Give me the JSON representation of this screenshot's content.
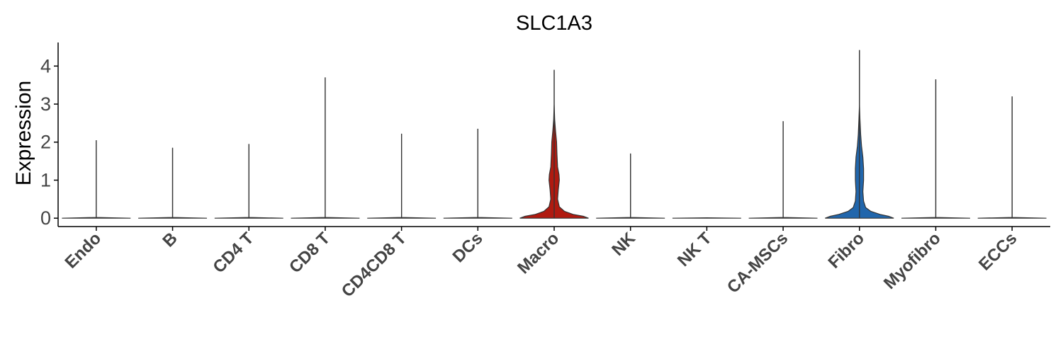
{
  "chart_data": {
    "type": "violin",
    "title": "SLC1A3",
    "xlabel": "",
    "ylabel": "Expression",
    "ylim": [
      -0.22,
      4.62
    ],
    "yticks": [
      0,
      1,
      2,
      3,
      4
    ],
    "grid": false,
    "categories": [
      "Endo",
      "B",
      "CD4 T",
      "CD8 T",
      "CD4CD8 T",
      "DCs",
      "Macro",
      "NK",
      "NK T",
      "CA-MSCs",
      "Fibro",
      "Myofibro",
      "ECCs"
    ],
    "max_values": [
      2.05,
      1.85,
      1.95,
      3.7,
      2.22,
      2.35,
      3.9,
      1.7,
      0,
      2.55,
      4.42,
      3.65,
      3.2
    ],
    "violins": [
      {
        "category": "Endo",
        "color": "#ffffff",
        "profile": [
          [
            0,
            1.0
          ],
          [
            0.02,
            0.0
          ],
          [
            2.05,
            0.0
          ]
        ]
      },
      {
        "category": "B",
        "color": "#ffffff",
        "profile": [
          [
            0,
            1.0
          ],
          [
            0.02,
            0.0
          ],
          [
            1.85,
            0.0
          ]
        ]
      },
      {
        "category": "CD4 T",
        "color": "#ffffff",
        "profile": [
          [
            0,
            1.0
          ],
          [
            0.02,
            0.0
          ],
          [
            1.95,
            0.0
          ]
        ]
      },
      {
        "category": "CD8 T",
        "color": "#ffffff",
        "profile": [
          [
            0,
            1.0
          ],
          [
            0.02,
            0.0
          ],
          [
            3.7,
            0.0
          ]
        ]
      },
      {
        "category": "CD4CD8 T",
        "color": "#ffffff",
        "profile": [
          [
            0,
            1.0
          ],
          [
            0.02,
            0.0
          ],
          [
            2.22,
            0.0
          ]
        ]
      },
      {
        "category": "DCs",
        "color": "#ffffff",
        "profile": [
          [
            0,
            1.0
          ],
          [
            0.02,
            0.0
          ],
          [
            2.35,
            0.0
          ]
        ]
      },
      {
        "category": "Macro",
        "color": "#b01a10",
        "profile": [
          [
            0,
            1.0
          ],
          [
            0.05,
            0.85
          ],
          [
            0.1,
            0.55
          ],
          [
            0.18,
            0.3
          ],
          [
            0.3,
            0.15
          ],
          [
            0.5,
            0.1
          ],
          [
            0.75,
            0.12
          ],
          [
            1.0,
            0.15
          ],
          [
            1.15,
            0.14
          ],
          [
            1.35,
            0.1
          ],
          [
            1.7,
            0.08
          ],
          [
            2.0,
            0.07
          ],
          [
            2.3,
            0.04
          ],
          [
            2.6,
            0.015
          ],
          [
            3.0,
            0.0
          ],
          [
            3.9,
            0.0
          ]
        ]
      },
      {
        "category": "NK",
        "color": "#ffffff",
        "profile": [
          [
            0,
            1.0
          ],
          [
            0.02,
            0.0
          ],
          [
            1.7,
            0.0
          ]
        ]
      },
      {
        "category": "NK T",
        "color": "#ffffff",
        "profile": [
          [
            0,
            1.0
          ],
          [
            0.01,
            0.0
          ]
        ]
      },
      {
        "category": "CA-MSCs",
        "color": "#ffffff",
        "profile": [
          [
            0,
            1.0
          ],
          [
            0.02,
            0.0
          ],
          [
            2.55,
            0.0
          ]
        ]
      },
      {
        "category": "Fibro",
        "color": "#2166ac",
        "profile": [
          [
            0,
            1.0
          ],
          [
            0.05,
            0.85
          ],
          [
            0.1,
            0.6
          ],
          [
            0.18,
            0.33
          ],
          [
            0.28,
            0.18
          ],
          [
            0.45,
            0.12
          ],
          [
            0.7,
            0.1
          ],
          [
            1.0,
            0.12
          ],
          [
            1.3,
            0.12
          ],
          [
            1.6,
            0.1
          ],
          [
            1.9,
            0.06
          ],
          [
            2.2,
            0.035
          ],
          [
            2.6,
            0.015
          ],
          [
            3.0,
            0.0
          ],
          [
            4.42,
            0.0
          ]
        ]
      },
      {
        "category": "Myofibro",
        "color": "#ffffff",
        "profile": [
          [
            0,
            1.0
          ],
          [
            0.02,
            0.0
          ],
          [
            3.65,
            0.0
          ]
        ]
      },
      {
        "category": "ECCs",
        "color": "#ffffff",
        "profile": [
          [
            0,
            1.0
          ],
          [
            0.02,
            0.0
          ],
          [
            3.2,
            0.0
          ]
        ]
      }
    ]
  }
}
